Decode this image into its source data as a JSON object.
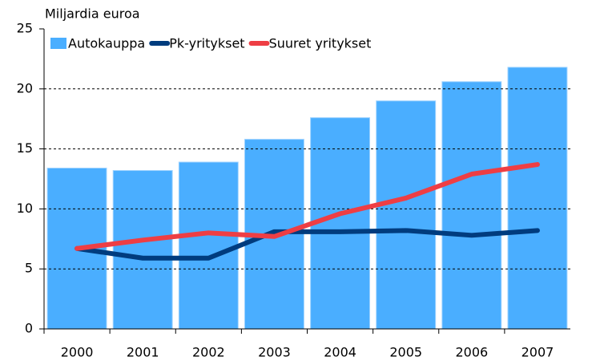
{
  "chart_data": {
    "type": "bar",
    "y_label": "Miljardia euroa",
    "categories": [
      "2000",
      "2001",
      "2002",
      "2003",
      "2004",
      "2005",
      "2006",
      "2007"
    ],
    "series": [
      {
        "name": "Autokauppa",
        "type": "bar",
        "color": "#4aaeff",
        "values": [
          13.4,
          13.2,
          13.9,
          15.8,
          17.6,
          19.0,
          20.6,
          21.8
        ]
      },
      {
        "name": "Pk-yritykset",
        "type": "line",
        "color": "#003c7e",
        "values": [
          6.7,
          5.9,
          5.9,
          8.1,
          8.1,
          8.2,
          7.8,
          8.2
        ]
      },
      {
        "name": "Suuret yritykset",
        "type": "line",
        "color": "#ee3e44",
        "values": [
          6.7,
          7.4,
          8.0,
          7.7,
          9.6,
          10.9,
          12.9,
          13.7
        ]
      }
    ],
    "ylim": [
      0,
      25
    ],
    "yticks": [
      0,
      5,
      10,
      15,
      20,
      25
    ],
    "grid": true,
    "legend": "top-left"
  }
}
